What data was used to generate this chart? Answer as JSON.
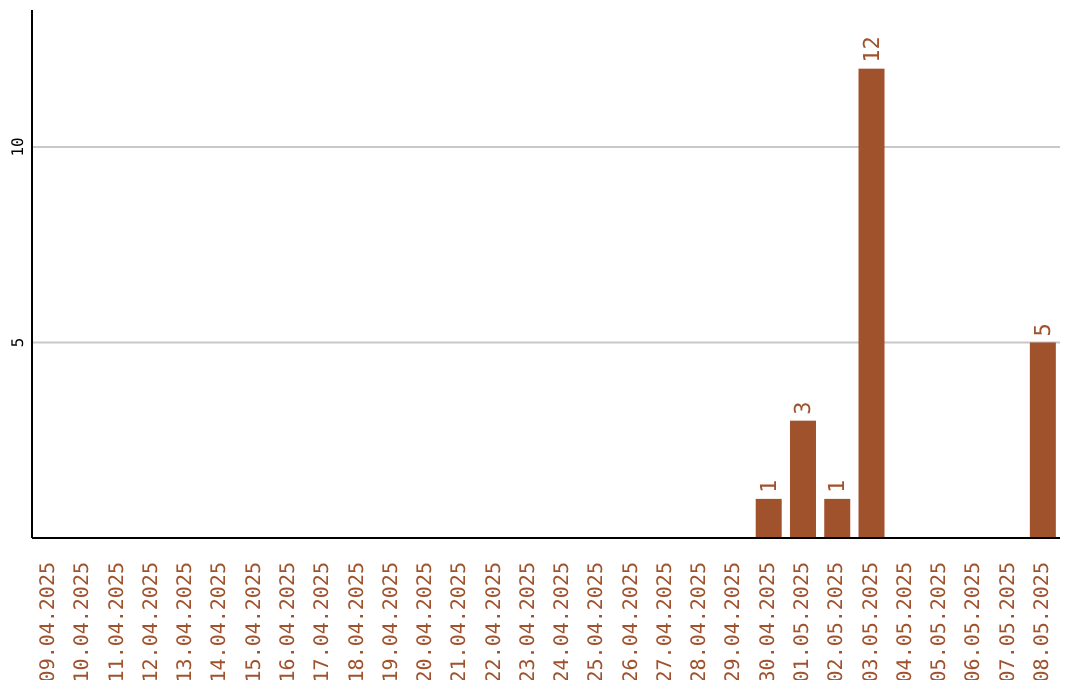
{
  "chart_data": {
    "type": "bar",
    "categories": [
      "09.04.2025",
      "10.04.2025",
      "11.04.2025",
      "12.04.2025",
      "13.04.2025",
      "14.04.2025",
      "15.04.2025",
      "16.04.2025",
      "17.04.2025",
      "18.04.2025",
      "19.04.2025",
      "20.04.2025",
      "21.04.2025",
      "22.04.2025",
      "23.04.2025",
      "24.04.2025",
      "25.04.2025",
      "26.04.2025",
      "27.04.2025",
      "28.04.2025",
      "29.04.2025",
      "30.04.2025",
      "01.05.2025",
      "02.05.2025",
      "03.05.2025",
      "04.05.2025",
      "05.05.2025",
      "06.05.2025",
      "07.05.2025",
      "08.05.2025"
    ],
    "values": [
      0,
      0,
      0,
      0,
      0,
      0,
      0,
      0,
      0,
      0,
      0,
      0,
      0,
      0,
      0,
      0,
      0,
      0,
      0,
      0,
      0,
      1,
      3,
      1,
      12,
      0,
      0,
      0,
      0,
      5
    ],
    "value_labels": [
      null,
      null,
      null,
      null,
      null,
      null,
      null,
      null,
      null,
      null,
      null,
      null,
      null,
      null,
      null,
      null,
      null,
      null,
      null,
      null,
      null,
      "1",
      "3",
      "1",
      "12",
      null,
      null,
      null,
      null,
      "5"
    ],
    "color": "#a0522d",
    "ylim": [
      0,
      13.5
    ],
    "yticks": [
      5,
      10
    ],
    "grid": "y"
  }
}
